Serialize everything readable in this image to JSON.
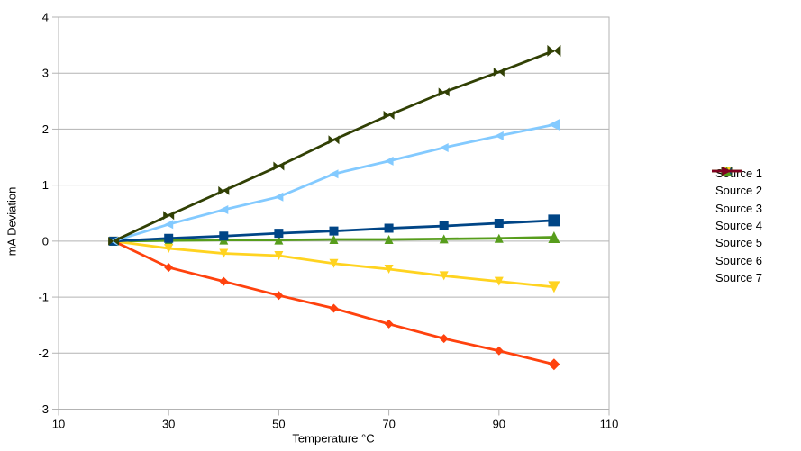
{
  "chart_data": {
    "type": "line",
    "title": "",
    "xlabel": "Temperature °C",
    "ylabel": "mA Deviation",
    "x": [
      20,
      30,
      40,
      50,
      60,
      70,
      80,
      90,
      100
    ],
    "series": [
      {
        "name": "Source 1",
        "color": "#314004",
        "marker": "bowtie",
        "values": [
          0,
          0.46,
          0.9,
          1.34,
          1.81,
          2.25,
          2.66,
          3.02,
          3.4
        ]
      },
      {
        "name": "Source 2",
        "color": "#83caff",
        "marker": "triangle-left",
        "values": [
          0,
          0.3,
          0.56,
          0.79,
          1.2,
          1.43,
          1.67,
          1.88,
          2.08
        ]
      },
      {
        "name": "Source 3",
        "color": "#004586",
        "marker": "square",
        "values": [
          0,
          0.05,
          0.09,
          0.14,
          0.18,
          0.23,
          0.27,
          0.32,
          0.37
        ]
      },
      {
        "name": "Source 4",
        "color": "#ff420e",
        "marker": "diamond",
        "values": [
          0,
          -0.47,
          -0.72,
          -0.97,
          -1.2,
          -1.48,
          -1.74,
          -1.96,
          -2.2
        ]
      },
      {
        "name": "Source 5",
        "color": "#ffd320",
        "marker": "triangle-down",
        "values": [
          0,
          -0.13,
          -0.22,
          -0.26,
          -0.4,
          -0.5,
          -0.62,
          -0.72,
          -0.82
        ]
      },
      {
        "name": "Source 6",
        "color": "#579d1c",
        "marker": "triangle-up",
        "values": [
          0,
          0.01,
          0.02,
          0.02,
          0.03,
          0.03,
          0.04,
          0.05,
          0.07
        ]
      },
      {
        "name": "Source 7",
        "color": "#7e0021",
        "marker": "triangle-right",
        "values": []
      }
    ],
    "xlim": [
      10,
      110
    ],
    "ylim": [
      -3,
      4
    ],
    "x_ticks": [
      10,
      30,
      50,
      70,
      90,
      110
    ],
    "y_ticks": [
      -3,
      -2,
      -1,
      0,
      1,
      2,
      3,
      4
    ],
    "grid": "horizontal-only",
    "legend_position": "right",
    "axis_color": "#b3b3b3",
    "gridline_color": "#b3b3b3",
    "background_color": "#ffffff",
    "text_color": "#000000"
  }
}
